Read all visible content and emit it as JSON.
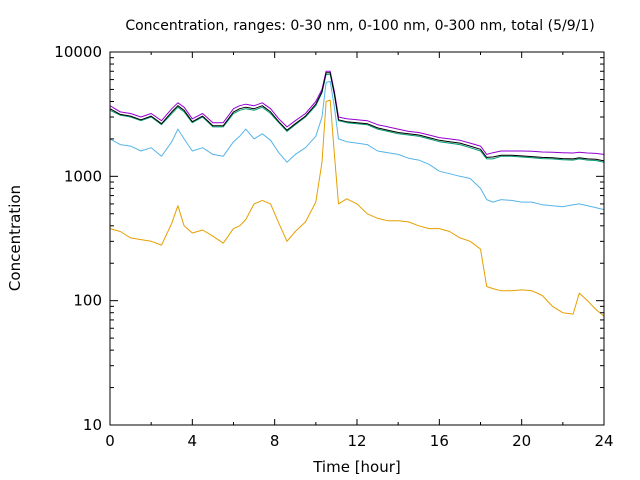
{
  "chart_data": {
    "type": "line",
    "title": "Concentration, ranges: 0-30 nm, 0-100 nm, 0-300 nm, total (5/9/1)",
    "xlabel": "Time [hour]",
    "ylabel": "Concentration",
    "xlim": [
      0,
      24
    ],
    "ylim": [
      10,
      10000
    ],
    "yscale": "log",
    "grid": false,
    "x_ticks": [
      0,
      4,
      8,
      12,
      16,
      20,
      24
    ],
    "y_ticks": [
      10,
      100,
      1000,
      10000
    ],
    "x": [
      0,
      0.5,
      1,
      1.5,
      2,
      2.5,
      3,
      3.3,
      3.6,
      4,
      4.5,
      5,
      5.5,
      6,
      6.3,
      6.6,
      7,
      7.4,
      7.8,
      8.2,
      8.6,
      9,
      9.5,
      10,
      10.3,
      10.5,
      10.7,
      10.9,
      11.1,
      11.5,
      12,
      12.5,
      13,
      13.5,
      14,
      14.5,
      15,
      15.5,
      16,
      16.5,
      17,
      17.5,
      18,
      18.3,
      18.6,
      19,
      19.5,
      20,
      20.5,
      21,
      21.5,
      22,
      22.5,
      22.8,
      23.2,
      23.6,
      24
    ],
    "series": [
      {
        "color": "#e69f00",
        "values": [
          380,
          360,
          320,
          310,
          300,
          280,
          420,
          580,
          400,
          350,
          370,
          330,
          290,
          380,
          400,
          450,
          600,
          640,
          600,
          420,
          300,
          360,
          430,
          620,
          1300,
          4000,
          4100,
          1500,
          600,
          660,
          600,
          500,
          460,
          440,
          440,
          430,
          400,
          380,
          380,
          360,
          320,
          300,
          260,
          130,
          125,
          120,
          120,
          122,
          120,
          110,
          90,
          80,
          78,
          115,
          100,
          85,
          75
        ]
      },
      {
        "color": "#56b4e9",
        "values": [
          2000,
          1800,
          1750,
          1600,
          1700,
          1450,
          1900,
          2400,
          2000,
          1600,
          1700,
          1500,
          1450,
          1900,
          2100,
          2400,
          2000,
          2200,
          1950,
          1550,
          1300,
          1500,
          1700,
          2100,
          3000,
          5700,
          5800,
          3600,
          2000,
          1900,
          1850,
          1800,
          1600,
          1550,
          1500,
          1400,
          1350,
          1250,
          1100,
          1050,
          1000,
          960,
          800,
          650,
          620,
          650,
          640,
          620,
          620,
          590,
          580,
          570,
          590,
          600,
          580,
          560,
          540
        ]
      },
      {
        "color": "#009e73",
        "values": [
          3400,
          3100,
          3000,
          2800,
          3000,
          2600,
          3200,
          3600,
          3300,
          2700,
          3000,
          2500,
          2500,
          3200,
          3400,
          3500,
          3400,
          3600,
          3200,
          2700,
          2300,
          2600,
          3000,
          3700,
          4700,
          6600,
          6600,
          4500,
          2800,
          2700,
          2650,
          2600,
          2400,
          2300,
          2200,
          2150,
          2100,
          2000,
          1900,
          1850,
          1800,
          1700,
          1600,
          1380,
          1380,
          1450,
          1450,
          1430,
          1410,
          1390,
          1380,
          1360,
          1350,
          1380,
          1350,
          1340,
          1300
        ]
      },
      {
        "color": "#9400d3",
        "values": [
          3700,
          3300,
          3200,
          3000,
          3200,
          2800,
          3500,
          3900,
          3600,
          2900,
          3200,
          2700,
          2700,
          3500,
          3700,
          3800,
          3700,
          3900,
          3500,
          2900,
          2500,
          2800,
          3200,
          4000,
          5000,
          7000,
          7000,
          4800,
          3000,
          2900,
          2850,
          2800,
          2600,
          2500,
          2400,
          2300,
          2250,
          2150,
          2050,
          2000,
          1950,
          1850,
          1750,
          1500,
          1550,
          1600,
          1600,
          1600,
          1590,
          1570,
          1560,
          1550,
          1540,
          1560,
          1540,
          1530,
          1500
        ]
      },
      {
        "color": "#000000",
        "values": [
          3500,
          3150,
          3050,
          2850,
          3050,
          2650,
          3300,
          3700,
          3400,
          2750,
          3050,
          2550,
          2550,
          3300,
          3500,
          3600,
          3500,
          3700,
          3300,
          2750,
          2350,
          2650,
          3050,
          3800,
          4800,
          6800,
          6800,
          4600,
          2850,
          2750,
          2700,
          2650,
          2450,
          2350,
          2250,
          2200,
          2150,
          2050,
          1950,
          1900,
          1850,
          1750,
          1650,
          1420,
          1430,
          1480,
          1480,
          1460,
          1440,
          1420,
          1410,
          1390,
          1380,
          1410,
          1380,
          1370,
          1330
        ]
      }
    ]
  }
}
